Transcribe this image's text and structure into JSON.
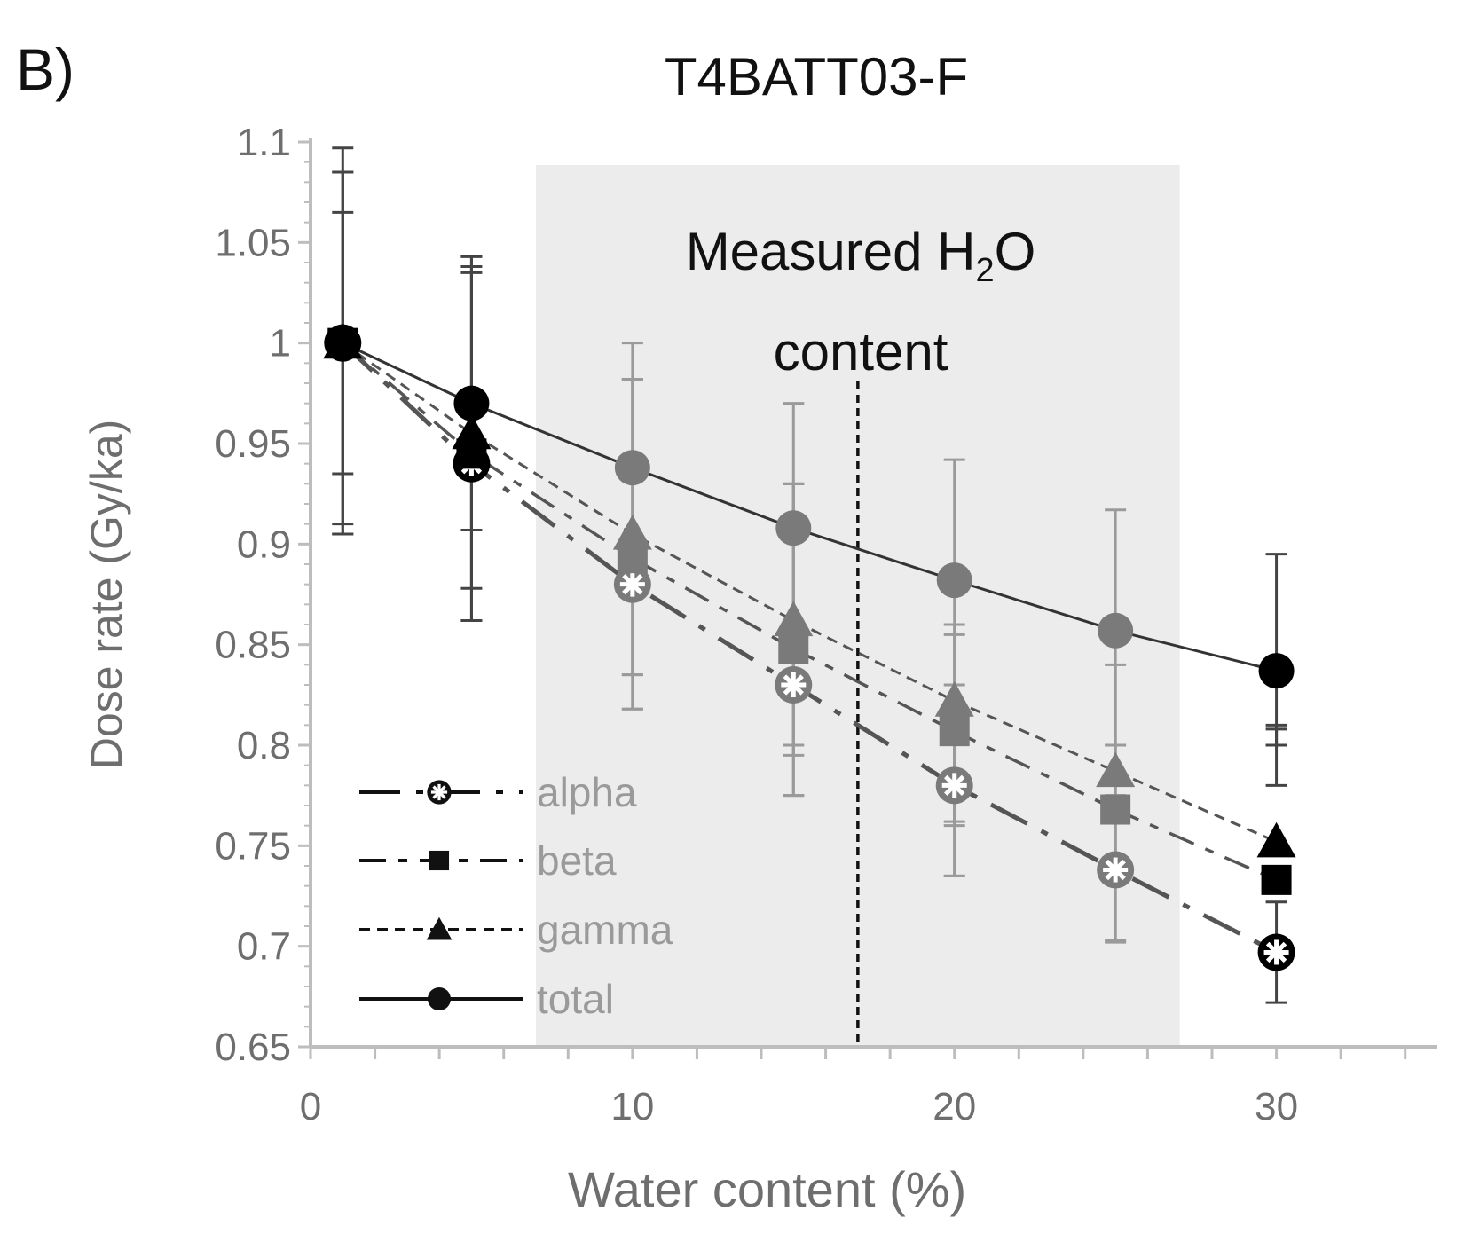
{
  "panel_label": "B)",
  "chart_data": {
    "type": "line",
    "title": "T4BATT03-F",
    "xlabel": "Water content (%)",
    "ylabel": "Dose rate (Gy/ka)",
    "xlim": [
      0,
      35
    ],
    "ylim": [
      0.65,
      1.1
    ],
    "x_ticks": [
      "0",
      "10",
      "20",
      "30"
    ],
    "y_ticks": [
      "0.65",
      "0.7",
      "0.75",
      "0.8",
      "0.85",
      "0.9",
      "0.95",
      "1",
      "1.05",
      "1.1"
    ],
    "grid": false,
    "legend_position": "bottom-left",
    "annotation": {
      "line1_text": "Measured H",
      "line1_sub": "2",
      "line1_tail": "O",
      "line2": "content",
      "shaded_range_x": [
        7,
        27
      ],
      "vertical_line_x": 17
    },
    "series": [
      {
        "name": "alpha",
        "marker": "star-circle",
        "color": "#111111",
        "x": [
          1,
          5,
          10,
          15,
          20,
          25,
          30
        ],
        "y": [
          1.0,
          0.94,
          0.88,
          0.83,
          0.78,
          0.738,
          0.697
        ],
        "err_low": [
          0.905,
          0.878,
          0.818,
          0.775,
          0.735,
          0.703,
          0.672
        ],
        "err_high": [
          1.085,
          1.035,
          0.982,
          0.93,
          0.83,
          0.775,
          0.722
        ]
      },
      {
        "name": "beta",
        "marker": "square",
        "color": "#111111",
        "x": [
          1,
          5,
          10,
          15,
          20,
          25,
          30
        ],
        "y": [
          1.0,
          0.945,
          0.893,
          0.848,
          0.807,
          0.768,
          0.733
        ],
        "err_low": [
          0.91,
          0.862,
          0.835,
          0.795,
          0.762,
          0.737,
          0.78
        ],
        "err_high": [
          1.065,
          1.038,
          0.982,
          0.93,
          0.855,
          0.8,
          0.81
        ]
      },
      {
        "name": "gamma",
        "marker": "triangle",
        "color": "#111111",
        "x": [
          1,
          5,
          10,
          15,
          20,
          25,
          30
        ],
        "y": [
          1.0,
          0.955,
          0.905,
          0.862,
          0.822,
          0.787,
          0.752
        ],
        "err_low": [
          0.935,
          0.907,
          0.835,
          0.8,
          0.76,
          0.735,
          0.8
        ],
        "err_high": [
          1.085,
          1.043,
          0.982,
          0.93,
          0.86,
          0.84,
          0.808
        ]
      },
      {
        "name": "total",
        "marker": "circle",
        "color": "#111111",
        "x": [
          1,
          5,
          10,
          15,
          20,
          25,
          30
        ],
        "y": [
          1.0,
          0.97,
          0.938,
          0.908,
          0.882,
          0.857,
          0.837
        ],
        "err_low": [
          0.905,
          0.862,
          0.818,
          0.775,
          0.735,
          0.702,
          0.8
        ],
        "err_high": [
          1.097,
          1.043,
          1.0,
          0.97,
          0.942,
          0.917,
          0.895
        ]
      }
    ]
  },
  "colors": {
    "shade": "#ececec",
    "axis": "#bdbdbd",
    "gray_marker": "#7a7a7a",
    "dark_marker": "#000000",
    "legend_text": "#9a9a9a"
  }
}
